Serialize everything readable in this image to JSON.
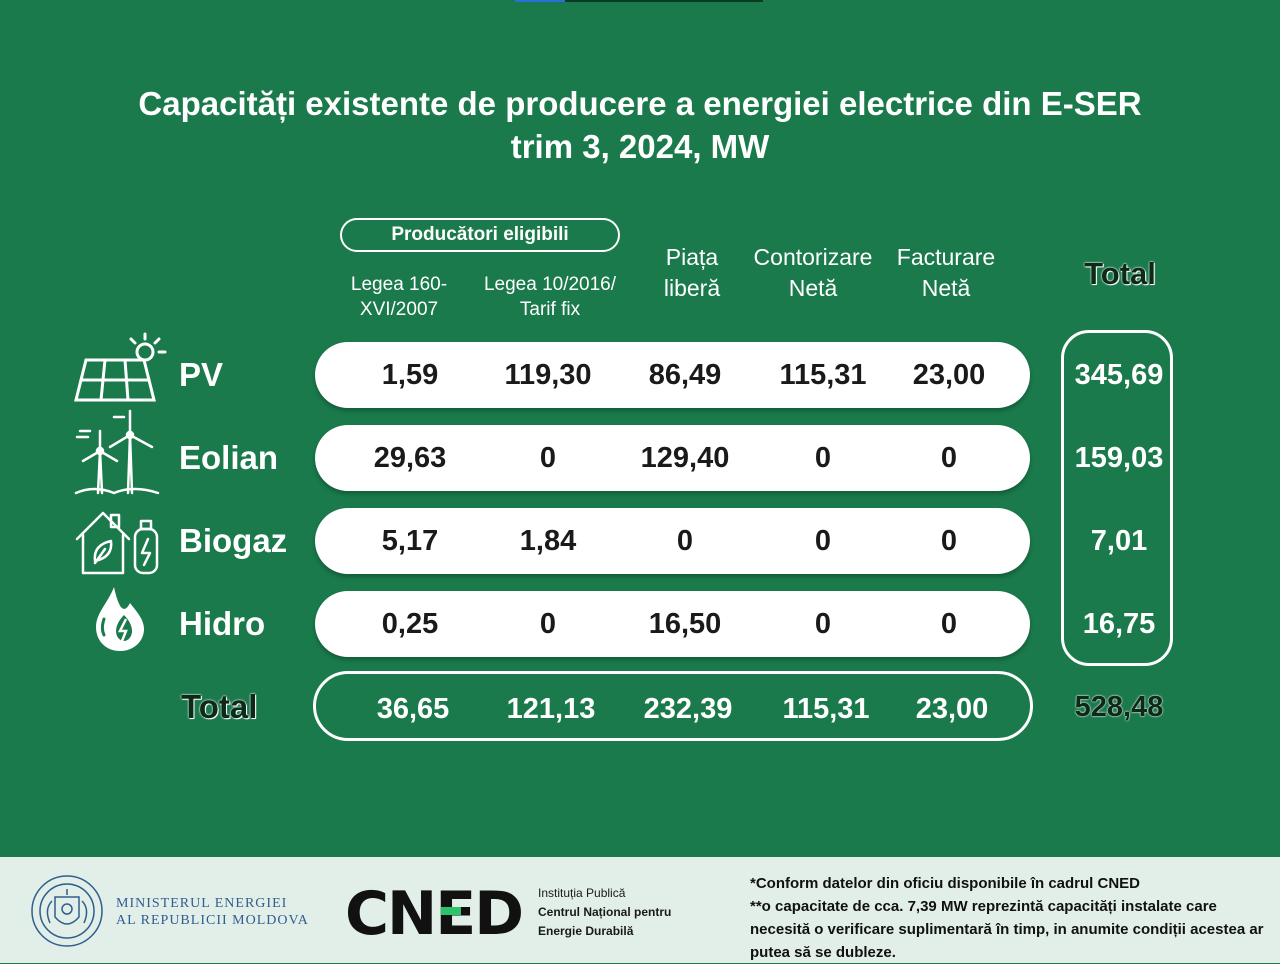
{
  "colors": {
    "background": "#1a7a4c",
    "pill": "#ffffff",
    "total_text": "#0d2a18",
    "footer": "#e2efe8",
    "ministry_text": "#2f5e8f"
  },
  "title": {
    "line1": "Capacități existente de producere a energiei electrice din E-SER",
    "line2": "trim 3, 2024, MW"
  },
  "header": {
    "group_label": "Producători eligibili",
    "columns": [
      {
        "line1": "Legea 160-",
        "line2": "XVI/2007"
      },
      {
        "line1": "Legea 10/2016/",
        "line2": "Tarif fix"
      },
      {
        "line1": "Piața",
        "line2": "liberă"
      },
      {
        "line1": "Contorizare",
        "line2": "Netă"
      },
      {
        "line1": "Facturare",
        "line2": "Netă"
      }
    ],
    "total_label": "Total"
  },
  "rows": [
    {
      "label": "PV",
      "icon": "solar-panel-icon",
      "values": [
        "1,59",
        "119,30",
        "86,49",
        "115,31",
        "23,00"
      ],
      "total": "345,69"
    },
    {
      "label": "Eolian",
      "icon": "wind-turbine-icon",
      "values": [
        "29,63",
        "0",
        "129,40",
        "0",
        "0"
      ],
      "total": "159,03"
    },
    {
      "label": "Biogaz",
      "icon": "biogas-icon",
      "values": [
        "5,17",
        "1,84",
        "0",
        "0",
        "0"
      ],
      "total": "7,01"
    },
    {
      "label": "Hidro",
      "icon": "water-drop-icon",
      "values": [
        "0,25",
        "0",
        "16,50",
        "0",
        "0"
      ],
      "total": "16,75"
    }
  ],
  "totals": {
    "label": "Total",
    "values": [
      "36,65",
      "121,13",
      "232,39",
      "115,31",
      "23,00"
    ],
    "grand_total": "528,48"
  },
  "footer": {
    "ministry_line1": "MINISTERUL ENERGIEI",
    "ministry_line2": "AL REPUBLICII MOLDOVA",
    "cned_logo_text": "CNED",
    "institution_line1": "Instituția Publică",
    "institution_line2": "Centrul Național pentru",
    "institution_line3": "Energie Durabilă",
    "note1": "*Conform datelor din oficiu disponibile în cadrul CNED",
    "note2": "**o capacitate de cca. 7,39 MW reprezintă capacități instalate care necesită o verificare suplimentară în timp, in anumite condiții acestea ar putea să se dubleze."
  }
}
